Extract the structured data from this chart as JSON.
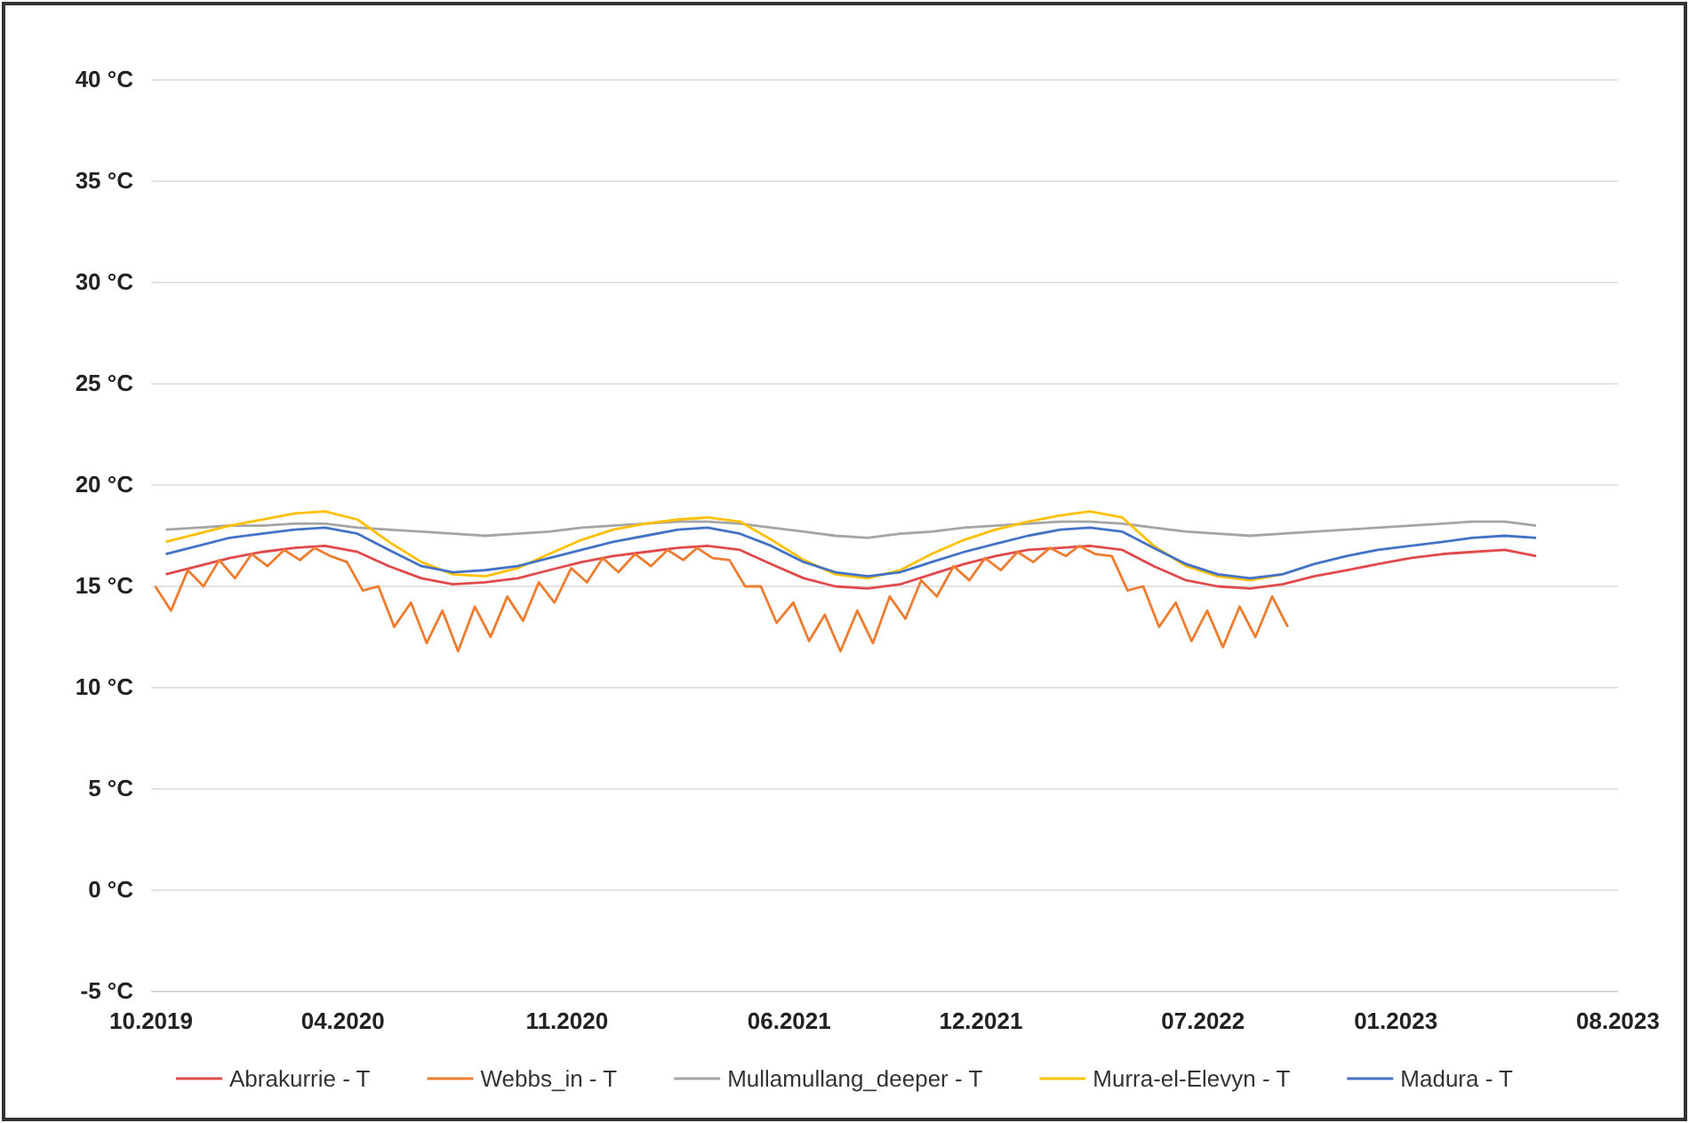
{
  "chart_data": {
    "type": "line",
    "x": [
      "2019-10-15",
      "2019-11-15",
      "2019-12-15",
      "2020-01-15",
      "2020-02-15",
      "2020-03-15",
      "2020-04-15",
      "2020-05-15",
      "2020-06-15",
      "2020-07-15",
      "2020-08-15",
      "2020-09-15",
      "2020-10-15",
      "2020-11-15",
      "2020-12-15",
      "2021-01-15",
      "2021-02-15",
      "2021-03-15",
      "2021-04-15",
      "2021-05-15",
      "2021-06-15",
      "2021-07-15",
      "2021-08-15",
      "2021-09-15",
      "2021-10-15",
      "2021-11-15",
      "2021-12-15",
      "2022-01-15",
      "2022-02-15",
      "2022-03-15",
      "2022-04-15",
      "2022-05-15",
      "2022-06-15",
      "2022-07-15",
      "2022-08-15",
      "2022-09-15",
      "2022-10-15",
      "2022-11-15",
      "2022-12-15",
      "2023-01-15",
      "2023-02-15",
      "2023-03-15",
      "2023-04-15",
      "2023-05-15"
    ],
    "series": [
      {
        "name": "Abrakurrie - T",
        "color": "#e04a4a",
        "values": [
          15.6,
          16.0,
          16.4,
          16.7,
          16.9,
          17.0,
          16.7,
          16.0,
          15.4,
          15.1,
          15.2,
          15.4,
          15.8,
          16.2,
          16.5,
          16.7,
          16.9,
          17.0,
          16.8,
          16.1,
          15.4,
          15.0,
          14.9,
          15.1,
          15.6,
          16.1,
          16.5,
          16.8,
          16.9,
          17.0,
          16.8,
          16.0,
          15.3,
          15.0,
          14.9,
          15.1,
          15.5,
          15.8,
          16.1,
          16.4,
          16.6,
          16.7,
          16.8,
          16.5
        ]
      },
      {
        "name": "Webbs_in - T",
        "color": "#ed7d31",
        "x": [
          "2019-10-05",
          "2019-10-20",
          "2019-11-05",
          "2019-11-20",
          "2019-12-05",
          "2019-12-20",
          "2020-01-05",
          "2020-01-20",
          "2020-02-05",
          "2020-02-20",
          "2020-03-05",
          "2020-03-20",
          "2020-04-05",
          "2020-04-20",
          "2020-05-05",
          "2020-05-20",
          "2020-06-05",
          "2020-06-20",
          "2020-07-05",
          "2020-07-20",
          "2020-08-05",
          "2020-08-20",
          "2020-09-05",
          "2020-09-20",
          "2020-10-05",
          "2020-10-20",
          "2020-11-05",
          "2020-11-20",
          "2020-12-05",
          "2020-12-20",
          "2021-01-05",
          "2021-01-20",
          "2021-02-05",
          "2021-02-20",
          "2021-03-05",
          "2021-03-20",
          "2021-04-05",
          "2021-04-20",
          "2021-05-05",
          "2021-05-20",
          "2021-06-05",
          "2021-06-20",
          "2021-07-05",
          "2021-07-20",
          "2021-08-05",
          "2021-08-20",
          "2021-09-05",
          "2021-09-20",
          "2021-10-05",
          "2021-10-20",
          "2021-11-05",
          "2021-11-20",
          "2021-12-05",
          "2021-12-20",
          "2022-01-05",
          "2022-01-20",
          "2022-02-05",
          "2022-02-20",
          "2022-03-05",
          "2022-03-20",
          "2022-04-05",
          "2022-04-20",
          "2022-05-05",
          "2022-05-20",
          "2022-06-05",
          "2022-06-20",
          "2022-07-05",
          "2022-07-20",
          "2022-08-05",
          "2022-08-20",
          "2022-09-05",
          "2022-09-20"
        ],
        "values": [
          15.0,
          13.8,
          15.8,
          15.0,
          16.3,
          15.4,
          16.6,
          16.0,
          16.8,
          16.3,
          16.9,
          16.5,
          16.2,
          14.8,
          15.0,
          13.0,
          14.2,
          12.2,
          13.8,
          11.8,
          14.0,
          12.5,
          14.5,
          13.3,
          15.2,
          14.2,
          15.9,
          15.2,
          16.4,
          15.7,
          16.6,
          16.0,
          16.8,
          16.3,
          16.9,
          16.4,
          16.3,
          15.0,
          15.0,
          13.2,
          14.2,
          12.3,
          13.6,
          11.8,
          13.8,
          12.2,
          14.5,
          13.4,
          15.3,
          14.5,
          16.0,
          15.3,
          16.4,
          15.8,
          16.7,
          16.2,
          16.9,
          16.5,
          17.0,
          16.6,
          16.5,
          14.8,
          15.0,
          13.0,
          14.2,
          12.3,
          13.8,
          12.0,
          14.0,
          12.5,
          14.5,
          13.0
        ]
      },
      {
        "name": "Mullamullang_deeper - T",
        "color": "#a5a5a5",
        "values": [
          17.8,
          17.9,
          18.0,
          18.0,
          18.1,
          18.1,
          17.9,
          17.8,
          17.7,
          17.6,
          17.5,
          17.6,
          17.7,
          17.9,
          18.0,
          18.1,
          18.2,
          18.2,
          18.1,
          17.9,
          17.7,
          17.5,
          17.4,
          17.6,
          17.7,
          17.9,
          18.0,
          18.1,
          18.2,
          18.2,
          18.1,
          17.9,
          17.7,
          17.6,
          17.5,
          17.6,
          17.7,
          17.8,
          17.9,
          18.0,
          18.1,
          18.2,
          18.2,
          18.0
        ]
      },
      {
        "name": "Murra-el-Elevyn - T",
        "color": "#ffc000",
        "values": [
          17.2,
          17.6,
          18.0,
          18.3,
          18.6,
          18.7,
          18.3,
          17.2,
          16.2,
          15.6,
          15.5,
          15.9,
          16.6,
          17.3,
          17.8,
          18.1,
          18.3,
          18.4,
          18.2,
          17.3,
          16.3,
          15.6,
          15.4,
          15.8,
          16.6,
          17.3,
          17.8,
          18.2,
          18.5,
          18.7,
          18.4,
          17.0,
          16.0,
          15.5,
          15.3,
          15.6,
          null,
          null,
          null,
          null,
          null,
          null,
          null,
          null
        ]
      },
      {
        "name": "Madura - T",
        "color": "#4472c4",
        "values": [
          16.6,
          17.0,
          17.4,
          17.6,
          17.8,
          17.9,
          17.6,
          16.8,
          16.0,
          15.7,
          15.8,
          16.0,
          16.4,
          16.8,
          17.2,
          17.5,
          17.8,
          17.9,
          17.6,
          17.0,
          16.2,
          15.7,
          15.5,
          15.7,
          16.2,
          16.7,
          17.1,
          17.5,
          17.8,
          17.9,
          17.7,
          16.9,
          16.1,
          15.6,
          15.4,
          15.6,
          16.1,
          16.5,
          16.8,
          17.0,
          17.2,
          17.4,
          17.5,
          17.4
        ]
      }
    ],
    "xlim": [
      "2019-10-01",
      "2023-08-01"
    ],
    "xticks": [
      {
        "value": "2019-10-01",
        "label": "10.2019"
      },
      {
        "value": "2020-04-01",
        "label": "04.2020"
      },
      {
        "value": "2020-11-01",
        "label": "11.2020"
      },
      {
        "value": "2021-06-01",
        "label": "06.2021"
      },
      {
        "value": "2021-12-01",
        "label": "12.2021"
      },
      {
        "value": "2022-07-01",
        "label": "07.2022"
      },
      {
        "value": "2023-01-01",
        "label": "01.2023"
      },
      {
        "value": "2023-08-01",
        "label": "08.2023"
      }
    ],
    "ylim": [
      -5,
      40
    ],
    "yticks": [
      {
        "value": -5,
        "label": "-5 °C"
      },
      {
        "value": 0,
        "label": "0 °C"
      },
      {
        "value": 5,
        "label": "5 °C"
      },
      {
        "value": 10,
        "label": "10 °C"
      },
      {
        "value": 15,
        "label": "15 °C"
      },
      {
        "value": 20,
        "label": "20 °C"
      },
      {
        "value": 25,
        "label": "25 °C"
      },
      {
        "value": 30,
        "label": "30 °C"
      },
      {
        "value": 35,
        "label": "35 °C"
      },
      {
        "value": 40,
        "label": "40 °C"
      }
    ],
    "grid": "y",
    "legend": "bottom",
    "line_style": "solid",
    "marker": "none"
  }
}
